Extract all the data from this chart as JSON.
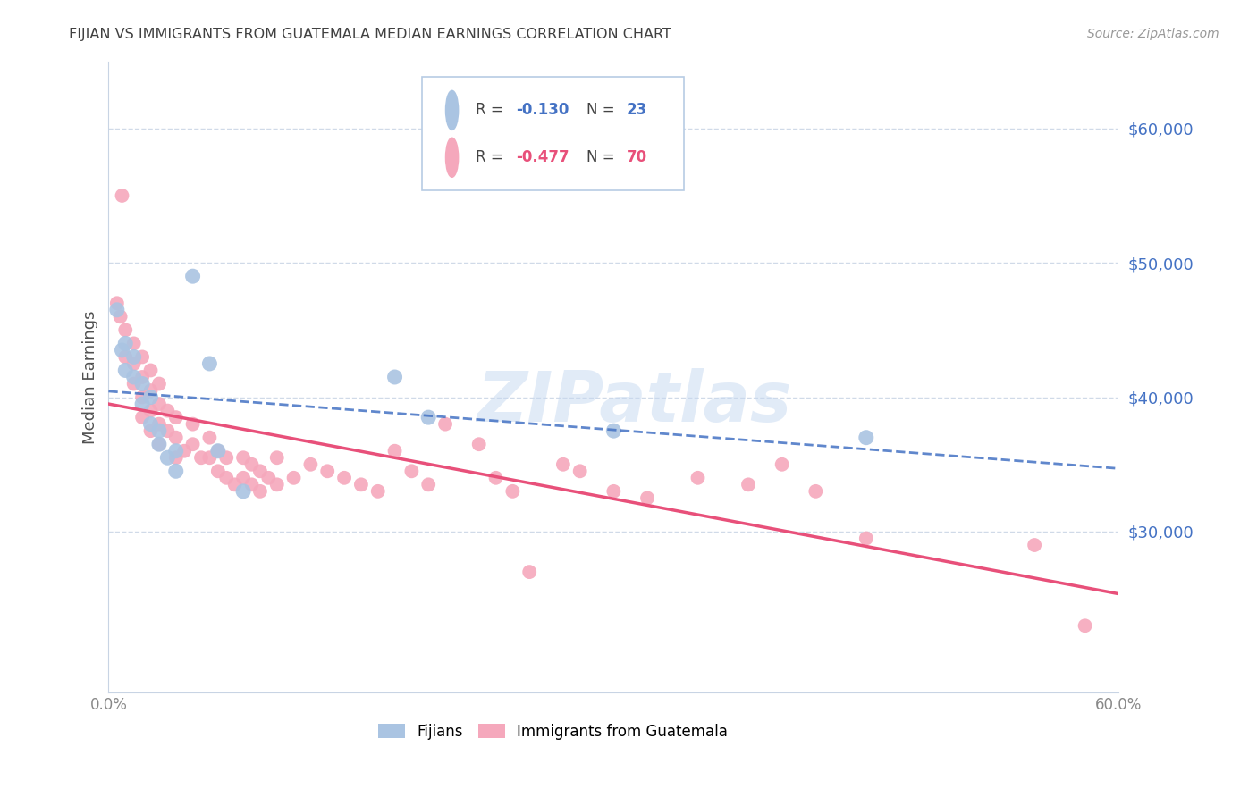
{
  "title": "FIJIAN VS IMMIGRANTS FROM GUATEMALA MEDIAN EARNINGS CORRELATION CHART",
  "source": "Source: ZipAtlas.com",
  "ylabel": "Median Earnings",
  "right_ytick_labels": [
    "$60,000",
    "$50,000",
    "$40,000",
    "$30,000"
  ],
  "right_ytick_values": [
    60000,
    50000,
    40000,
    30000
  ],
  "ylim": [
    18000,
    65000
  ],
  "xlim": [
    0.0,
    0.6
  ],
  "xtick_values": [
    0.0,
    0.1,
    0.2,
    0.3,
    0.4,
    0.5,
    0.6
  ],
  "xtick_labels": [
    "0.0%",
    "",
    "",
    "",
    "",
    "",
    "60.0%"
  ],
  "watermark": "ZIPatlas",
  "fijian_color": "#aac4e2",
  "guatemala_color": "#f5a8bc",
  "fijian_line_color": "#4472c4",
  "guatemala_line_color": "#e8507a",
  "title_color": "#404040",
  "source_color": "#999999",
  "right_label_color": "#4472c4",
  "grid_color": "#d0dae8",
  "background_color": "#ffffff",
  "fijians_x": [
    0.005,
    0.008,
    0.01,
    0.01,
    0.015,
    0.015,
    0.02,
    0.02,
    0.025,
    0.025,
    0.03,
    0.03,
    0.035,
    0.04,
    0.04,
    0.05,
    0.06,
    0.065,
    0.08,
    0.17,
    0.19,
    0.3,
    0.45
  ],
  "fijians_y": [
    46500,
    43500,
    44000,
    42000,
    43000,
    41500,
    41000,
    39500,
    40000,
    38000,
    37500,
    36500,
    35500,
    36000,
    34500,
    49000,
    42500,
    36000,
    33000,
    41500,
    38500,
    37500,
    37000
  ],
  "guatemala_x": [
    0.005,
    0.007,
    0.008,
    0.01,
    0.01,
    0.015,
    0.015,
    0.015,
    0.02,
    0.02,
    0.02,
    0.02,
    0.025,
    0.025,
    0.025,
    0.025,
    0.03,
    0.03,
    0.03,
    0.03,
    0.035,
    0.035,
    0.04,
    0.04,
    0.04,
    0.045,
    0.05,
    0.05,
    0.055,
    0.06,
    0.06,
    0.065,
    0.065,
    0.07,
    0.07,
    0.075,
    0.08,
    0.08,
    0.085,
    0.085,
    0.09,
    0.09,
    0.095,
    0.1,
    0.1,
    0.11,
    0.12,
    0.13,
    0.14,
    0.15,
    0.16,
    0.17,
    0.18,
    0.19,
    0.2,
    0.22,
    0.23,
    0.24,
    0.25,
    0.27,
    0.28,
    0.3,
    0.32,
    0.35,
    0.38,
    0.4,
    0.42,
    0.45,
    0.55,
    0.58
  ],
  "guatemala_y": [
    47000,
    46000,
    55000,
    45000,
    43000,
    44000,
    42500,
    41000,
    43000,
    41500,
    40000,
    38500,
    42000,
    40500,
    39000,
    37500,
    41000,
    39500,
    38000,
    36500,
    39000,
    37500,
    38500,
    37000,
    35500,
    36000,
    38000,
    36500,
    35500,
    37000,
    35500,
    36000,
    34500,
    35500,
    34000,
    33500,
    35500,
    34000,
    35000,
    33500,
    34500,
    33000,
    34000,
    35500,
    33500,
    34000,
    35000,
    34500,
    34000,
    33500,
    33000,
    36000,
    34500,
    33500,
    38000,
    36500,
    34000,
    33000,
    27000,
    35000,
    34500,
    33000,
    32500,
    34000,
    33500,
    35000,
    33000,
    29500,
    29000,
    23000
  ],
  "fijian_marker_size": 150,
  "guatemala_marker_size": 130,
  "legend_r1_val": "-0.130",
  "legend_n1_val": "23",
  "legend_r2_val": "-0.477",
  "legend_n2_val": "70"
}
